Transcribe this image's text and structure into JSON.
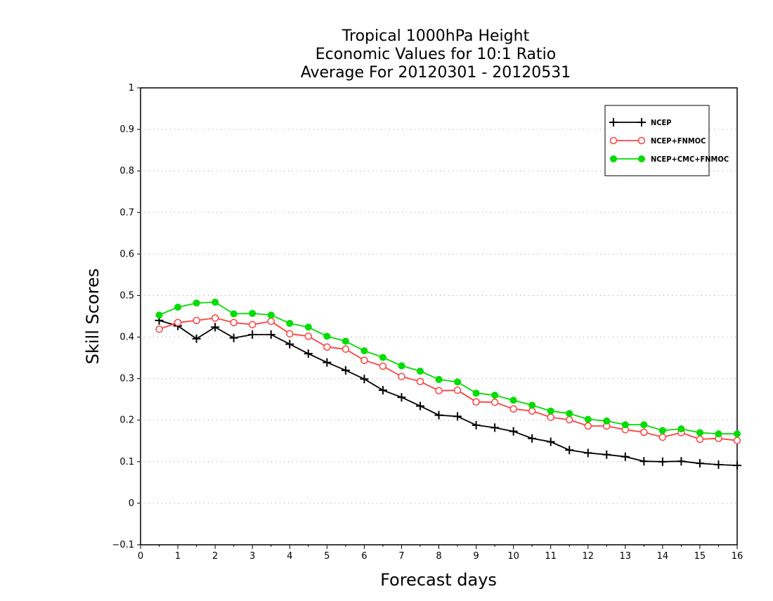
{
  "chart_data": {
    "type": "line",
    "title_lines": [
      "Tropical 1000hPa Height",
      "Economic Values for 10:1 Ratio",
      "Average For 20120301 - 20120531"
    ],
    "xlabel": "Forecast days",
    "ylabel": "Skill Scores",
    "xlim": [
      0,
      16
    ],
    "ylim": [
      -0.1,
      1
    ],
    "x_ticks": [
      "0",
      "1",
      "2",
      "3",
      "4",
      "5",
      "6",
      "7",
      "8",
      "9",
      "10",
      "11",
      "12",
      "13",
      "14",
      "15",
      "16"
    ],
    "y_ticks": [
      "-0.1",
      "0",
      "0.1",
      "0.2",
      "0.3",
      "0.4",
      "0.5",
      "0.6",
      "0.7",
      "0.8",
      "0.9",
      "1"
    ],
    "grid": "horizontal dotted",
    "legend_position": "top-right",
    "x": [
      0.5,
      1,
      1.5,
      2,
      2.5,
      3,
      3.5,
      4,
      4.5,
      5,
      5.5,
      6,
      6.5,
      7,
      7.5,
      8,
      8.5,
      9,
      9.5,
      10,
      10.5,
      11,
      11.5,
      12,
      12.5,
      13,
      13.5,
      14,
      14.5,
      15,
      15.5,
      16
    ],
    "series": [
      {
        "name": "NCEP",
        "color": "#000000",
        "marker": "plus",
        "values": [
          0.44,
          0.427,
          0.396,
          0.424,
          0.398,
          0.406,
          0.406,
          0.383,
          0.36,
          0.339,
          0.32,
          0.299,
          0.272,
          0.255,
          0.234,
          0.212,
          0.209,
          0.188,
          0.182,
          0.173,
          0.156,
          0.148,
          0.128,
          0.121,
          0.117,
          0.112,
          0.101,
          0.1,
          0.101,
          0.096,
          0.093,
          0.091
        ]
      },
      {
        "name": "NCEP+FNMOC",
        "color": "#ff4040",
        "marker": "open-circle",
        "values": [
          0.419,
          0.435,
          0.44,
          0.446,
          0.435,
          0.43,
          0.438,
          0.408,
          0.402,
          0.376,
          0.371,
          0.344,
          0.33,
          0.305,
          0.293,
          0.271,
          0.272,
          0.244,
          0.243,
          0.227,
          0.222,
          0.207,
          0.201,
          0.186,
          0.186,
          0.177,
          0.171,
          0.159,
          0.17,
          0.154,
          0.156,
          0.151
        ]
      },
      {
        "name": "NCEP+CMC+FNMOC",
        "color": "#00dd00",
        "marker": "filled-circle",
        "values": [
          0.453,
          0.472,
          0.482,
          0.484,
          0.456,
          0.457,
          0.453,
          0.433,
          0.424,
          0.402,
          0.39,
          0.367,
          0.351,
          0.331,
          0.318,
          0.298,
          0.292,
          0.265,
          0.26,
          0.248,
          0.236,
          0.222,
          0.216,
          0.202,
          0.198,
          0.189,
          0.189,
          0.175,
          0.179,
          0.17,
          0.167,
          0.167
        ]
      }
    ]
  }
}
